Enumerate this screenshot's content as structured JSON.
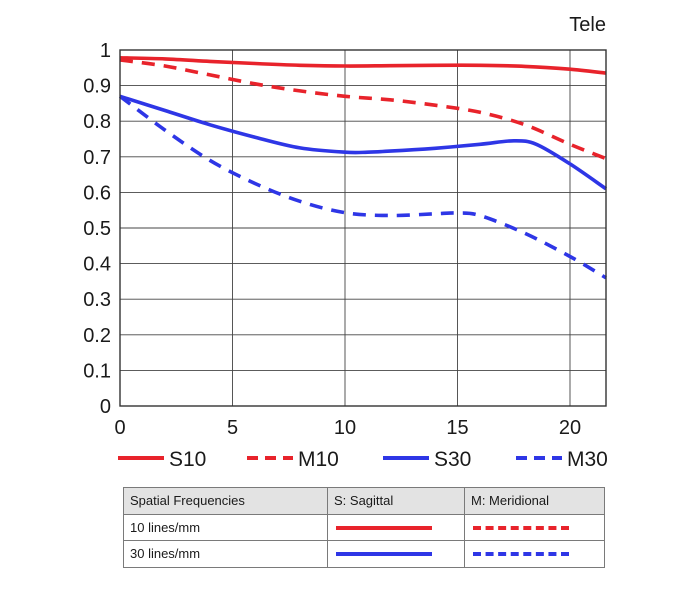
{
  "chart_data": {
    "type": "line",
    "title": "Tele",
    "xlabel": "",
    "ylabel": "",
    "xlim": [
      0,
      21.6
    ],
    "ylim": [
      0,
      1
    ],
    "x_ticks": [
      "0",
      "5",
      "10",
      "15",
      "20"
    ],
    "y_ticks": [
      "0",
      "0.1",
      "0.2",
      "0.3",
      "0.4",
      "0.5",
      "0.6",
      "0.7",
      "0.8",
      "0.9",
      "1"
    ],
    "grid": true,
    "legend_position": "bottom",
    "series": [
      {
        "name": "S10",
        "color": "#e8232b",
        "dash": "solid",
        "x": [
          0,
          2,
          4,
          6,
          8,
          10,
          12,
          14,
          16,
          18,
          20,
          21.6
        ],
        "y": [
          0.978,
          0.975,
          0.968,
          0.962,
          0.957,
          0.955,
          0.956,
          0.957,
          0.957,
          0.954,
          0.946,
          0.935
        ]
      },
      {
        "name": "M10",
        "color": "#e8232b",
        "dash": "dashed",
        "x": [
          0,
          2,
          4,
          6,
          8,
          10,
          12,
          14,
          16,
          18,
          20,
          21.6
        ],
        "y": [
          0.972,
          0.955,
          0.93,
          0.905,
          0.885,
          0.87,
          0.86,
          0.845,
          0.825,
          0.79,
          0.735,
          0.695
        ]
      },
      {
        "name": "S30",
        "color": "#2e36e6",
        "dash": "solid",
        "x": [
          0,
          2,
          4,
          6,
          8,
          10,
          11,
          12,
          14,
          16,
          17.5,
          18.5,
          20,
          21.6
        ],
        "y": [
          0.87,
          0.83,
          0.79,
          0.755,
          0.725,
          0.713,
          0.713,
          0.716,
          0.724,
          0.735,
          0.745,
          0.735,
          0.68,
          0.61
        ]
      },
      {
        "name": "M30",
        "color": "#2e36e6",
        "dash": "dashed",
        "x": [
          0,
          2,
          4,
          6,
          8,
          10,
          12,
          14,
          15,
          16,
          18,
          20,
          21.6
        ],
        "y": [
          0.87,
          0.775,
          0.69,
          0.625,
          0.575,
          0.543,
          0.535,
          0.54,
          0.542,
          0.535,
          0.485,
          0.42,
          0.36
        ]
      }
    ]
  },
  "legend_table": {
    "headers": [
      "Spatial Frequencies",
      "S: Sagittal",
      "M: Meridional"
    ],
    "rows": [
      "10 lines/mm",
      "30 lines/mm"
    ]
  }
}
